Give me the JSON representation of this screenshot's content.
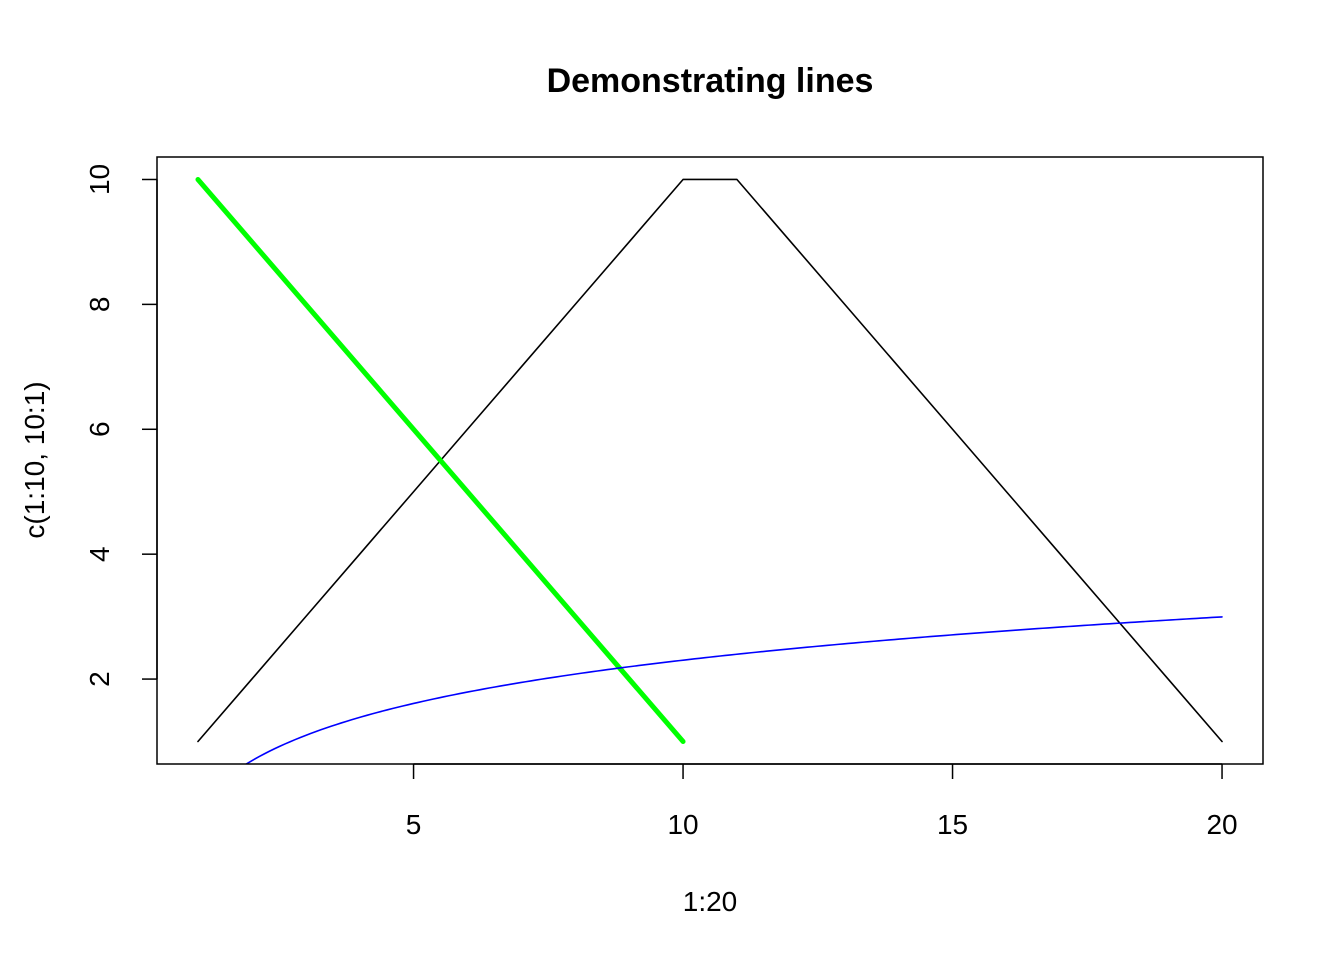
{
  "chart_data": {
    "type": "line",
    "title": "Demonstrating lines",
    "xlabel": "1:20",
    "ylabel": "c(1:10, 10:1)",
    "xlim": [
      0.24,
      20.76
    ],
    "ylim": [
      0.64,
      10.36
    ],
    "x_ticks": [
      5,
      10,
      15,
      20
    ],
    "y_ticks": [
      2,
      4,
      6,
      8,
      10
    ],
    "x_tick_labels": [
      "5",
      "10",
      "15",
      "20"
    ],
    "y_tick_labels": [
      "2",
      "4",
      "6",
      "8",
      "10"
    ],
    "grid": false,
    "legend": "none",
    "series": [
      {
        "color": "#000000",
        "width": 1,
        "x": [
          1,
          2,
          3,
          4,
          5,
          6,
          7,
          8,
          9,
          10,
          11,
          12,
          13,
          14,
          15,
          16,
          17,
          18,
          19,
          20
        ],
        "y": [
          1,
          2,
          3,
          4,
          5,
          6,
          7,
          8,
          9,
          10,
          10,
          9,
          8,
          7,
          6,
          5,
          4,
          3,
          2,
          1
        ]
      },
      {
        "color": "#00ff00",
        "width": 3,
        "x": [
          1,
          10
        ],
        "y": [
          10,
          1
        ]
      },
      {
        "color": "#0000ff",
        "width": 1,
        "function": "log",
        "x_range": [
          1,
          20
        ]
      }
    ]
  }
}
